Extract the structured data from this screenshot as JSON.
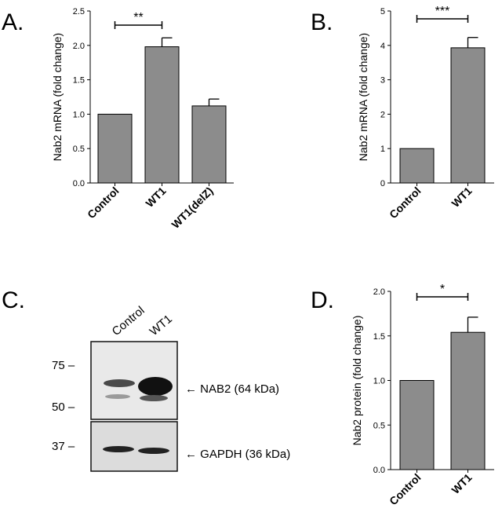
{
  "chart_data": [
    {
      "panel": "A.",
      "type": "bar",
      "categories": [
        "Control",
        "WT1",
        "WT1(delZ)"
      ],
      "values": [
        1.0,
        1.98,
        1.12
      ],
      "errors": [
        0.0,
        0.13,
        0.1
      ],
      "ylabel": "Nab2 mRNA (fold change)",
      "ylim": [
        0,
        2.5
      ],
      "yticks": [
        "0.0",
        "0.5",
        "1.0",
        "1.5",
        "2.0",
        "2.5"
      ],
      "significance": {
        "from": 0,
        "to": 1,
        "label": "**"
      },
      "bar_color": "#8c8c8c"
    },
    {
      "panel": "B.",
      "type": "bar",
      "categories": [
        "Control",
        "WT1"
      ],
      "values": [
        1.0,
        3.93
      ],
      "errors": [
        0.0,
        0.3
      ],
      "ylabel": "Nab2 mRNA (fold change)",
      "ylim": [
        0,
        5
      ],
      "yticks": [
        "0",
        "1",
        "2",
        "3",
        "4",
        "5"
      ],
      "significance": {
        "from": 0,
        "to": 1,
        "label": "***"
      },
      "bar_color": "#8c8c8c"
    },
    {
      "panel": "D.",
      "type": "bar",
      "categories": [
        "Control",
        "WT1"
      ],
      "values": [
        1.0,
        1.54
      ],
      "errors": [
        0.0,
        0.17
      ],
      "ylabel": "Nab2 protein (fold change)",
      "ylim": [
        0,
        2.0
      ],
      "yticks": [
        "0.0",
        "0.5",
        "1.0",
        "1.5",
        "2.0"
      ],
      "significance": {
        "from": 0,
        "to": 1,
        "label": "*"
      },
      "bar_color": "#8c8c8c"
    }
  ],
  "blot": {
    "panel": "C.",
    "lanes": [
      "Control",
      "WT1"
    ],
    "markers": [
      "75 –",
      "50 –",
      "37 –"
    ],
    "bands": [
      "← NAB2 (64 kDa)",
      "← GAPDH (36 kDa)"
    ]
  }
}
